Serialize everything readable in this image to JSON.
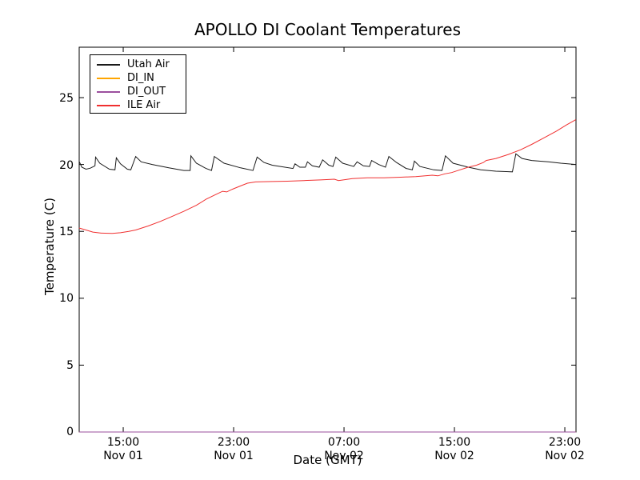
{
  "title": "APOLLO DI Coolant Temperatures",
  "axes": {
    "xlabel": "Date (GMT)",
    "ylabel": "Temperature (C)",
    "yticks": [
      "0",
      "5",
      "10",
      "15",
      "20",
      "25"
    ],
    "xticks": [
      {
        "time": "15:00",
        "date": "Nov 01"
      },
      {
        "time": "23:00",
        "date": "Nov 01"
      },
      {
        "time": "07:00",
        "date": "Nov 02"
      },
      {
        "time": "15:00",
        "date": "Nov 02"
      },
      {
        "time": "23:00",
        "date": "Nov 02"
      }
    ]
  },
  "legend": {
    "items": [
      {
        "label": "Utah Air"
      },
      {
        "label": "DI_IN"
      },
      {
        "label": "DI_OUT"
      },
      {
        "label": "ILE Air"
      }
    ]
  },
  "chart_data": {
    "type": "line",
    "title": "APOLLO DI Coolant Temperatures",
    "xlabel": "Date (GMT)",
    "ylabel": "Temperature (C)",
    "x_unit": "hours since Nov 01 00:00 GMT",
    "xlim": [
      11.81,
      47.81
    ],
    "ylim": [
      0,
      28.77
    ],
    "xtick_hours": [
      15,
      23,
      31,
      39,
      47
    ],
    "ytick_values": [
      0,
      5,
      10,
      15,
      20,
      25
    ],
    "grid": false,
    "legend_position": "upper left",
    "frame_color": "#000000",
    "background": "#ffffff",
    "note": "DI_IN and DI_OUT show no data above zero; they lie flat along the baseline (purple/orange tint on bottom spine). Utah Air oscillates in a sawtooth around 20 C; ILE Air dips to ~14.85 C, plateaus near 18.8-19.2 C, then climbs to ~23.35 C.",
    "series": [
      {
        "name": "Utah Air",
        "color": "#1a1a1a",
        "points": [
          [
            11.8,
            20.25
          ],
          [
            12.0,
            19.8
          ],
          [
            12.3,
            19.65
          ],
          [
            12.6,
            19.72
          ],
          [
            12.95,
            19.9
          ],
          [
            13.0,
            20.55
          ],
          [
            13.3,
            20.1
          ],
          [
            14.0,
            19.65
          ],
          [
            14.4,
            19.6
          ],
          [
            14.5,
            20.5
          ],
          [
            14.8,
            20.05
          ],
          [
            15.3,
            19.65
          ],
          [
            15.55,
            19.6
          ],
          [
            15.9,
            20.6
          ],
          [
            16.3,
            20.2
          ],
          [
            17.1,
            20.0
          ],
          [
            18.3,
            19.75
          ],
          [
            19.4,
            19.55
          ],
          [
            19.85,
            19.55
          ],
          [
            19.9,
            20.65
          ],
          [
            20.3,
            20.1
          ],
          [
            21.0,
            19.7
          ],
          [
            21.4,
            19.55
          ],
          [
            21.6,
            20.6
          ],
          [
            22.3,
            20.1
          ],
          [
            23.5,
            19.75
          ],
          [
            24.4,
            19.55
          ],
          [
            24.7,
            20.55
          ],
          [
            25.2,
            20.15
          ],
          [
            25.8,
            19.95
          ],
          [
            27.3,
            19.7
          ],
          [
            27.45,
            20.05
          ],
          [
            27.8,
            19.8
          ],
          [
            28.2,
            19.8
          ],
          [
            28.35,
            20.2
          ],
          [
            28.7,
            19.9
          ],
          [
            29.2,
            19.8
          ],
          [
            29.45,
            20.35
          ],
          [
            29.9,
            19.95
          ],
          [
            30.2,
            19.85
          ],
          [
            30.4,
            20.55
          ],
          [
            30.9,
            20.1
          ],
          [
            31.7,
            19.85
          ],
          [
            31.95,
            20.2
          ],
          [
            32.4,
            19.9
          ],
          [
            32.85,
            19.85
          ],
          [
            33.0,
            20.3
          ],
          [
            33.5,
            20.0
          ],
          [
            34.0,
            19.8
          ],
          [
            34.25,
            20.6
          ],
          [
            34.8,
            20.15
          ],
          [
            35.5,
            19.7
          ],
          [
            35.95,
            19.6
          ],
          [
            36.1,
            20.25
          ],
          [
            36.5,
            19.85
          ],
          [
            37.5,
            19.6
          ],
          [
            38.1,
            19.55
          ],
          [
            38.35,
            20.65
          ],
          [
            38.9,
            20.1
          ],
          [
            40.0,
            19.8
          ],
          [
            40.9,
            19.6
          ],
          [
            42.0,
            19.5
          ],
          [
            43.2,
            19.45
          ],
          [
            43.45,
            20.8
          ],
          [
            43.9,
            20.45
          ],
          [
            44.6,
            20.3
          ],
          [
            45.8,
            20.2
          ],
          [
            46.7,
            20.1
          ],
          [
            47.8,
            20.0
          ]
        ]
      },
      {
        "name": "DI_IN",
        "color": "#ffa500",
        "points": [
          [
            11.8,
            0.0
          ],
          [
            47.8,
            0.0
          ]
        ]
      },
      {
        "name": "DI_OUT",
        "color": "#9b4f9e",
        "points": [
          [
            11.8,
            0.0
          ],
          [
            47.8,
            0.0
          ]
        ]
      },
      {
        "name": "ILE Air",
        "color": "#f03030",
        "points": [
          [
            11.8,
            15.25
          ],
          [
            12.3,
            15.1
          ],
          [
            12.8,
            14.95
          ],
          [
            13.4,
            14.87
          ],
          [
            14.2,
            14.85
          ],
          [
            14.8,
            14.9
          ],
          [
            15.4,
            15.0
          ],
          [
            15.9,
            15.1
          ],
          [
            16.8,
            15.4
          ],
          [
            17.7,
            15.75
          ],
          [
            18.5,
            16.1
          ],
          [
            19.4,
            16.5
          ],
          [
            20.3,
            16.95
          ],
          [
            21.0,
            17.4
          ],
          [
            21.7,
            17.75
          ],
          [
            22.2,
            18.0
          ],
          [
            22.5,
            17.95
          ],
          [
            22.9,
            18.15
          ],
          [
            23.5,
            18.4
          ],
          [
            24.0,
            18.6
          ],
          [
            24.6,
            18.7
          ],
          [
            25.8,
            18.73
          ],
          [
            26.9,
            18.75
          ],
          [
            28.1,
            18.8
          ],
          [
            29.3,
            18.85
          ],
          [
            30.3,
            18.9
          ],
          [
            30.6,
            18.8
          ],
          [
            31.6,
            18.95
          ],
          [
            32.7,
            19.0
          ],
          [
            33.9,
            19.0
          ],
          [
            35.1,
            19.05
          ],
          [
            36.2,
            19.1
          ],
          [
            37.4,
            19.2
          ],
          [
            37.8,
            19.15
          ],
          [
            38.3,
            19.3
          ],
          [
            38.8,
            19.4
          ],
          [
            39.4,
            19.6
          ],
          [
            40.0,
            19.8
          ],
          [
            40.6,
            19.95
          ],
          [
            41.1,
            20.15
          ],
          [
            41.3,
            20.3
          ],
          [
            42.0,
            20.45
          ],
          [
            42.9,
            20.75
          ],
          [
            43.8,
            21.1
          ],
          [
            44.6,
            21.5
          ],
          [
            45.5,
            22.0
          ],
          [
            46.4,
            22.5
          ],
          [
            47.1,
            22.95
          ],
          [
            47.8,
            23.35
          ]
        ]
      }
    ]
  }
}
